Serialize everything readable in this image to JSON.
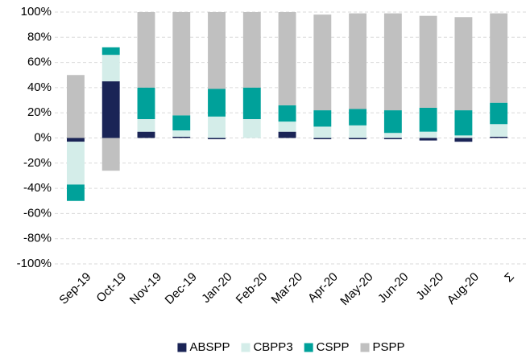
{
  "chart_data": {
    "type": "stacked_bar",
    "categories": [
      "Sep-19",
      "Oct-19",
      "Nov-19",
      "Dec-19",
      "Jan-20",
      "Feb-20",
      "Mar-20",
      "Apr-20",
      "May-20",
      "Jun-20",
      "Jul-20",
      "Aug-20",
      "Σ"
    ],
    "series": [
      {
        "name": "ABSPP",
        "color": "#1a2456",
        "values": [
          -3,
          45,
          5,
          1,
          -1,
          0,
          5,
          -1,
          -1,
          -1,
          -2,
          -3,
          1
        ]
      },
      {
        "name": "CBPP3",
        "color": "#d4ede9",
        "values": [
          -34,
          21,
          10,
          5,
          17,
          15,
          8,
          9,
          10,
          4,
          5,
          2,
          10
        ]
      },
      {
        "name": "CSPP",
        "color": "#00a19a",
        "values": [
          -13,
          6,
          25,
          12,
          22,
          25,
          13,
          13,
          13,
          18,
          19,
          20,
          17
        ]
      },
      {
        "name": "PSPP",
        "color": "#c0c0c0",
        "values": [
          50,
          -26,
          60,
          82,
          61,
          60,
          74,
          76,
          76,
          77,
          73,
          74,
          71
        ]
      }
    ],
    "ylim": [
      -100,
      100
    ],
    "yticks": [
      {
        "value": -100,
        "label": "-100%"
      },
      {
        "value": -80,
        "label": "-80%"
      },
      {
        "value": -60,
        "label": "-60%"
      },
      {
        "value": -40,
        "label": "-40%"
      },
      {
        "value": -20,
        "label": "-20%"
      },
      {
        "value": 0,
        "label": "0%"
      },
      {
        "value": 20,
        "label": "20%"
      },
      {
        "value": 40,
        "label": "40%"
      },
      {
        "value": 60,
        "label": "60%"
      },
      {
        "value": 80,
        "label": "80%"
      },
      {
        "value": 100,
        "label": "100%"
      }
    ],
    "grid": true,
    "legend": "bottom"
  }
}
